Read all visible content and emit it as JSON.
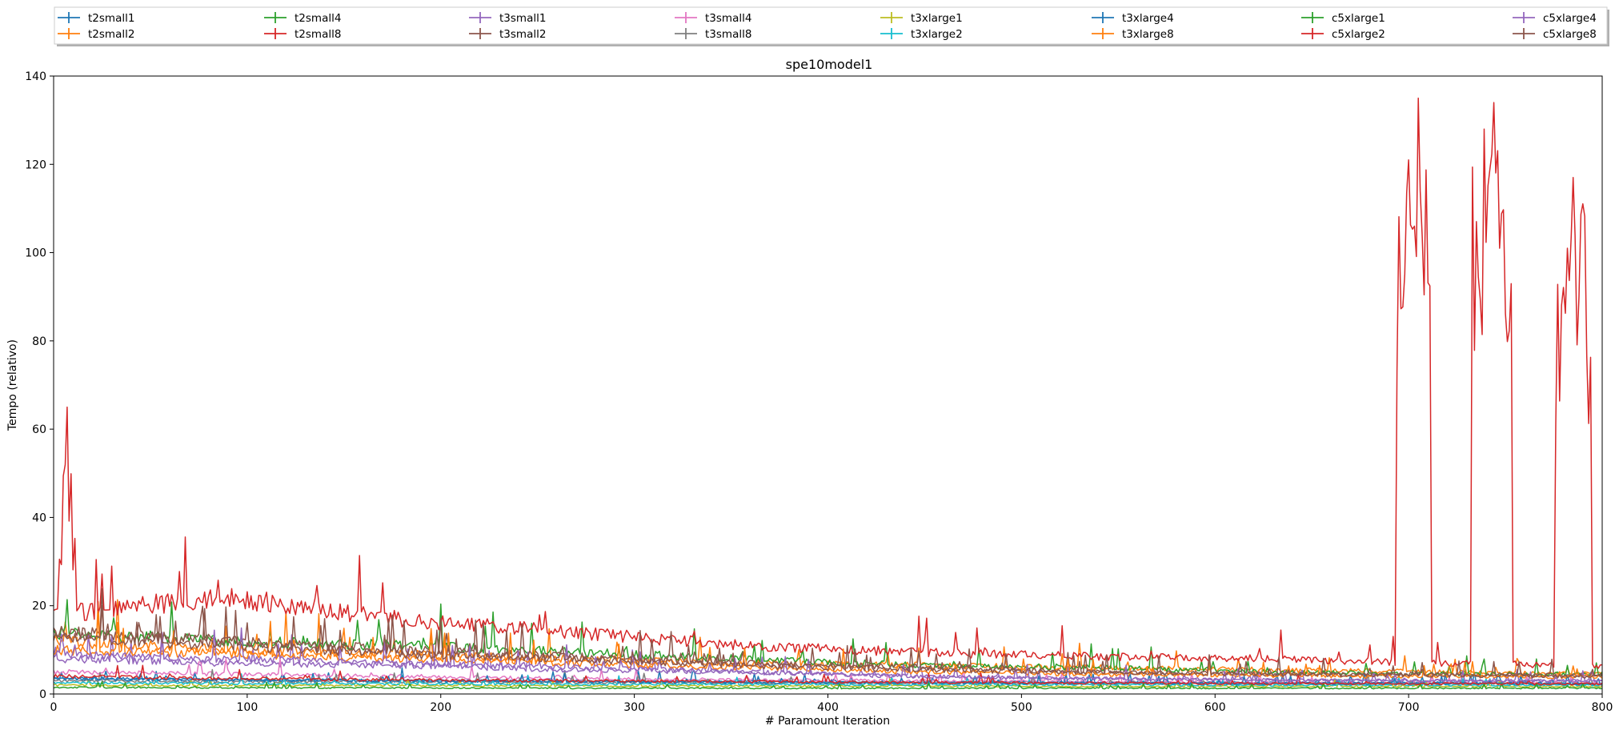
{
  "chart_data": {
    "type": "line",
    "title": "spe10model1",
    "xlabel": "# Paramount Iteration",
    "ylabel": "Tempo (relativo)",
    "xlim": [
      0,
      800
    ],
    "ylim": [
      0,
      140
    ],
    "xticks": [
      0,
      100,
      200,
      300,
      400,
      500,
      600,
      700,
      800
    ],
    "yticks": [
      0,
      20,
      40,
      60,
      80,
      100,
      120,
      140
    ],
    "grid": false,
    "legend_position": "top",
    "legend_columns": 8,
    "series": [
      {
        "name": "t2small1",
        "color": "#1f77b4",
        "values": [
          3.5,
          3.2,
          3.0,
          2.9,
          2.8,
          2.7,
          2.6,
          2.5,
          2.5,
          2.4
        ]
      },
      {
        "name": "t2small2",
        "color": "#ff7f0e",
        "values": [
          12,
          10,
          9,
          8,
          7,
          6.5,
          6,
          5.5,
          5,
          4.5
        ]
      },
      {
        "name": "t2small4",
        "color": "#2ca02c",
        "values": [
          14,
          12,
          11,
          9.5,
          8,
          6.5,
          6,
          5,
          4.5,
          4.5
        ]
      },
      {
        "name": "t2small8",
        "color": "#d62728",
        "values": [
          18,
          22,
          17,
          14,
          11,
          9.5,
          8.5,
          8,
          7,
          6.5
        ],
        "spikes": [
          {
            "x": 7,
            "y": 65
          },
          {
            "x": 700,
            "y": 121
          },
          {
            "x": 703,
            "y": 106
          },
          {
            "x": 705,
            "y": 135
          },
          {
            "x": 739,
            "y": 128
          },
          {
            "x": 744,
            "y": 134
          },
          {
            "x": 747,
            "y": 101
          },
          {
            "x": 782,
            "y": 101
          },
          {
            "x": 785,
            "y": 117
          },
          {
            "x": 788,
            "y": 90
          }
        ]
      },
      {
        "name": "t3small1",
        "color": "#9467bd",
        "values": [
          8,
          7,
          6.5,
          5.5,
          5,
          4,
          3.5,
          3.2,
          3,
          3
        ]
      },
      {
        "name": "t3small2",
        "color": "#8c564b",
        "values": [
          14,
          12,
          10,
          8.5,
          7,
          6,
          5,
          4.5,
          4.5,
          4.2
        ]
      },
      {
        "name": "t3small4",
        "color": "#e377c2",
        "values": [
          5,
          4.5,
          4,
          3.5,
          3.2,
          3,
          2.8,
          2.6,
          2.5,
          2.4
        ]
      },
      {
        "name": "t3small8",
        "color": "#7f7f7f",
        "values": [
          3,
          2.8,
          2.7,
          2.6,
          2.5,
          2.4,
          2.4,
          2.3,
          2.3,
          2.2
        ]
      },
      {
        "name": "t3xlarge1",
        "color": "#bcbd22",
        "values": [
          2.0,
          1.9,
          1.9,
          1.8,
          1.8,
          1.8,
          1.7,
          1.7,
          1.7,
          1.7
        ]
      },
      {
        "name": "t3xlarge2",
        "color": "#17becf",
        "values": [
          2.5,
          2.4,
          2.3,
          2.2,
          2.2,
          2.1,
          2.1,
          2.0,
          2.0,
          2.0
        ]
      },
      {
        "name": "t3xlarge4",
        "color": "#1f77b4",
        "values": [
          3.5,
          3.2,
          3.0,
          2.8,
          2.6,
          2.5,
          2.5,
          2.4,
          2.4,
          2.3
        ]
      },
      {
        "name": "t3xlarge8",
        "color": "#ff7f0e",
        "values": [
          10,
          9,
          8,
          7,
          6,
          5,
          4.5,
          4.2,
          4,
          3.8
        ]
      },
      {
        "name": "c5xlarge1",
        "color": "#2ca02c",
        "values": [
          1.5,
          1.4,
          1.4,
          1.3,
          1.3,
          1.3,
          1.3,
          1.3,
          1.3,
          1.3
        ]
      },
      {
        "name": "c5xlarge2",
        "color": "#d62728",
        "values": [
          4,
          3.5,
          3.2,
          3,
          2.8,
          2.6,
          2.5,
          2.4,
          2.3,
          2.3
        ]
      },
      {
        "name": "c5xlarge4",
        "color": "#9467bd",
        "values": [
          9,
          8,
          7,
          6,
          5,
          4,
          3.5,
          3.2,
          3,
          3
        ]
      },
      {
        "name": "c5xlarge8",
        "color": "#8c564b",
        "values": [
          13,
          11,
          9,
          8,
          6.5,
          5.5,
          5,
          4.5,
          4.2,
          4
        ]
      }
    ]
  }
}
